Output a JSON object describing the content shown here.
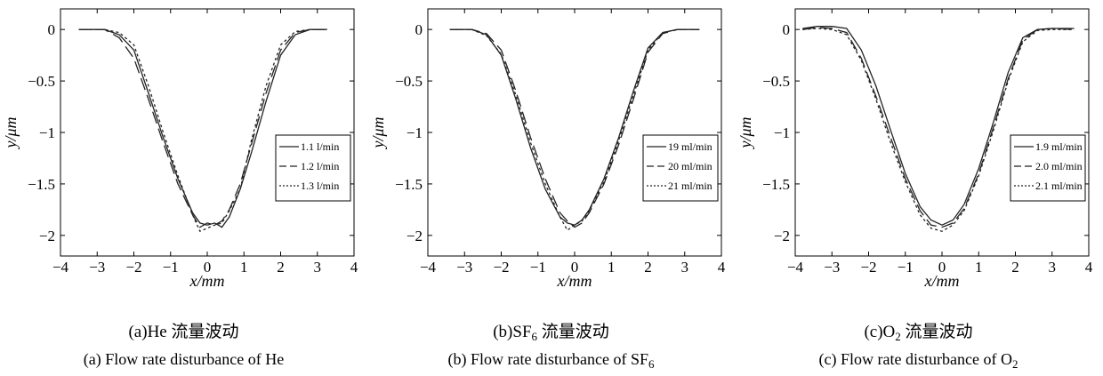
{
  "chart_data": [
    {
      "type": "line",
      "panel": "a",
      "xlabel": "x/mm",
      "ylabel": "y/μm",
      "xlim": [
        -4,
        4
      ],
      "ylim": [
        -2.2,
        0.2
      ],
      "xticks": [
        "−4",
        "−3",
        "−2",
        "−1",
        "0",
        "1",
        "2",
        "3",
        "4"
      ],
      "yticks": [
        "0",
        "−0.5",
        "−1",
        "−1.5",
        "−2"
      ],
      "caption_cn_pre": "(a)He",
      "caption_cn_sub": "",
      "caption_cn_post": " 流量波动",
      "caption_en_pre": "(a) Flow rate disturbance of He",
      "caption_en_sub": "",
      "legend_position": "right",
      "series": [
        {
          "name": "1.1 l/min",
          "dash": "solid",
          "x": [
            -3.5,
            -2.8,
            -2.4,
            -2.0,
            -1.6,
            -1.2,
            -0.8,
            -0.4,
            -0.2,
            0.0,
            0.2,
            0.4,
            0.6,
            0.9,
            1.2,
            1.6,
            2.0,
            2.4,
            2.8,
            3.2
          ],
          "y": [
            0,
            0,
            -0.05,
            -0.2,
            -0.62,
            -1.05,
            -1.45,
            -1.78,
            -1.88,
            -1.9,
            -1.88,
            -1.92,
            -1.82,
            -1.55,
            -1.2,
            -0.7,
            -0.25,
            -0.05,
            0,
            0
          ]
        },
        {
          "name": "1.2 l/min",
          "dash": "dash",
          "x": [
            -3.5,
            -2.8,
            -2.4,
            -2.0,
            -1.6,
            -1.2,
            -0.8,
            -0.4,
            -0.2,
            0.0,
            0.2,
            0.4,
            0.6,
            0.9,
            1.2,
            1.6,
            2.0,
            2.4,
            2.8,
            3.4
          ],
          "y": [
            0,
            0,
            -0.08,
            -0.28,
            -0.68,
            -1.1,
            -1.5,
            -1.8,
            -1.92,
            -1.88,
            -1.9,
            -1.86,
            -1.75,
            -1.5,
            -1.12,
            -0.62,
            -0.2,
            -0.03,
            0,
            0
          ]
        },
        {
          "name": "1.3 l/min",
          "dash": "dot",
          "x": [
            -3.5,
            -2.8,
            -2.4,
            -2.0,
            -1.6,
            -1.2,
            -0.8,
            -0.4,
            -0.2,
            0.0,
            0.2,
            0.4,
            0.6,
            0.9,
            1.2,
            1.6,
            2.0,
            2.4,
            2.8,
            3.2
          ],
          "y": [
            0,
            0,
            -0.03,
            -0.15,
            -0.55,
            -1.0,
            -1.42,
            -1.8,
            -1.96,
            -1.93,
            -1.9,
            -1.88,
            -1.76,
            -1.55,
            -1.08,
            -0.55,
            -0.15,
            -0.02,
            0,
            0
          ]
        }
      ]
    },
    {
      "type": "line",
      "panel": "b",
      "xlabel": "x/mm",
      "ylabel": "y/μm",
      "xlim": [
        -4,
        4
      ],
      "ylim": [
        -2.2,
        0.2
      ],
      "xticks": [
        "−4",
        "−3",
        "−2",
        "−1",
        "0",
        "1",
        "2",
        "3",
        "4"
      ],
      "yticks": [
        "0",
        "−0.5",
        "−1",
        "−1.5",
        "−2"
      ],
      "caption_cn_pre": "(b)SF",
      "caption_cn_sub": "6",
      "caption_cn_post": " 流量波动",
      "caption_en_pre": "(b) Flow rate disturbance of SF",
      "caption_en_sub": "6",
      "legend_position": "right",
      "series": [
        {
          "name": "19 ml/min",
          "dash": "solid",
          "x": [
            -3.4,
            -2.8,
            -2.4,
            -2.0,
            -1.6,
            -1.2,
            -0.8,
            -0.4,
            -0.2,
            0.0,
            0.2,
            0.4,
            0.8,
            1.2,
            1.6,
            2.0,
            2.4,
            2.8,
            3.4
          ],
          "y": [
            0,
            0,
            -0.05,
            -0.25,
            -0.68,
            -1.15,
            -1.55,
            -1.82,
            -1.88,
            -1.9,
            -1.85,
            -1.75,
            -1.45,
            -1.05,
            -0.6,
            -0.18,
            -0.03,
            0,
            0
          ]
        },
        {
          "name": "20 ml/min",
          "dash": "dash",
          "x": [
            -3.4,
            -2.8,
            -2.4,
            -2.0,
            -1.6,
            -1.2,
            -0.8,
            -0.4,
            -0.2,
            0.0,
            0.2,
            0.4,
            0.8,
            1.2,
            1.6,
            2.0,
            2.4,
            2.8,
            3.4
          ],
          "y": [
            0,
            0,
            -0.04,
            -0.2,
            -0.6,
            -1.05,
            -1.45,
            -1.78,
            -1.86,
            -1.92,
            -1.88,
            -1.78,
            -1.5,
            -1.12,
            -0.68,
            -0.22,
            -0.04,
            0,
            0
          ]
        },
        {
          "name": "21 ml/min",
          "dash": "dot",
          "x": [
            -3.4,
            -2.8,
            -2.4,
            -2.0,
            -1.6,
            -1.2,
            -0.8,
            -0.4,
            -0.2,
            0.0,
            0.2,
            0.4,
            0.8,
            1.2,
            1.6,
            2.0,
            2.4,
            2.8,
            3.4
          ],
          "y": [
            0,
            0,
            -0.06,
            -0.24,
            -0.64,
            -1.1,
            -1.5,
            -1.82,
            -1.95,
            -1.9,
            -1.86,
            -1.76,
            -1.48,
            -1.08,
            -0.64,
            -0.2,
            -0.03,
            0,
            0
          ]
        }
      ]
    },
    {
      "type": "line",
      "panel": "c",
      "xlabel": "x/mm",
      "ylabel": "y/μm",
      "xlim": [
        -4,
        4
      ],
      "ylim": [
        -2.2,
        0.2
      ],
      "xticks": [
        "−4",
        "−3",
        "−2",
        "−1",
        "0",
        "1",
        "2",
        "3",
        "4"
      ],
      "yticks": [
        "0",
        "−0.5",
        "−1",
        "−1.5",
        "−2"
      ],
      "caption_cn_pre": "(c)O",
      "caption_cn_sub": "2",
      "caption_cn_post": " 流量波动",
      "caption_en_pre": "(c) Flow rate disturbance of O",
      "caption_en_sub": "2",
      "legend_position": "right",
      "series": [
        {
          "name": "1.9 ml/min",
          "dash": "solid",
          "x": [
            -3.8,
            -3.4,
            -3.0,
            -2.6,
            -2.2,
            -1.8,
            -1.4,
            -1.0,
            -0.6,
            -0.3,
            0.0,
            0.3,
            0.6,
            1.0,
            1.4,
            1.8,
            2.2,
            2.6,
            3.0,
            3.6
          ],
          "y": [
            0.01,
            0.03,
            0.03,
            0.01,
            -0.2,
            -0.55,
            -0.98,
            -1.4,
            -1.72,
            -1.85,
            -1.9,
            -1.85,
            -1.7,
            -1.35,
            -0.9,
            -0.42,
            -0.08,
            0,
            0.01,
            0.01
          ]
        },
        {
          "name": "2.0 ml/min",
          "dash": "dash",
          "x": [
            -3.8,
            -3.4,
            -3.0,
            -2.6,
            -2.2,
            -1.8,
            -1.4,
            -1.0,
            -0.6,
            -0.3,
            0.0,
            0.3,
            0.6,
            1.0,
            1.4,
            1.8,
            2.2,
            2.6,
            3.0,
            3.6
          ],
          "y": [
            0,
            0.02,
            0.01,
            -0.03,
            -0.28,
            -0.65,
            -1.05,
            -1.45,
            -1.76,
            -1.9,
            -1.92,
            -1.88,
            -1.74,
            -1.4,
            -0.95,
            -0.48,
            -0.1,
            0,
            0.01,
            0
          ]
        },
        {
          "name": "2.1 ml/min",
          "dash": "dot",
          "x": [
            -3.8,
            -3.4,
            -3.0,
            -2.6,
            -2.2,
            -1.8,
            -1.4,
            -1.0,
            -0.6,
            -0.3,
            0.0,
            0.3,
            0.6,
            1.0,
            1.4,
            1.8,
            2.2,
            2.6,
            3.0,
            3.6
          ],
          "y": [
            0,
            0.01,
            0,
            -0.05,
            -0.3,
            -0.68,
            -1.1,
            -1.48,
            -1.8,
            -1.93,
            -1.96,
            -1.9,
            -1.76,
            -1.42,
            -0.98,
            -0.5,
            -0.12,
            -0.01,
            0,
            0
          ]
        }
      ]
    }
  ]
}
